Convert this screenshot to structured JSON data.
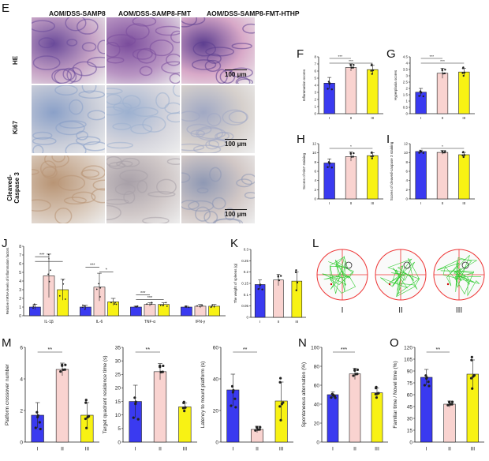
{
  "panel_letters": {
    "E": "E",
    "F": "F",
    "G": "G",
    "H": "H",
    "I": "I",
    "J": "J",
    "K": "K",
    "L": "L",
    "M": "M",
    "N": "N",
    "O": "O"
  },
  "histology": {
    "columns": [
      "AOM/DSS-SAMP8",
      "AOM/DSS-SAMP8-FMT",
      "AOM/DSS-SAMP8-FMT-HTHP"
    ],
    "rows": [
      "HE",
      "Ki67",
      "Cleaved-\nCaspase 3"
    ],
    "scale": "100 μm"
  },
  "colors": {
    "I": "#3a3af0",
    "II": "#f9d3d0",
    "III": "#f8f214"
  },
  "maze": {
    "labels": [
      "I",
      "II",
      "III"
    ]
  },
  "chart_data": [
    {
      "id": "F",
      "type": "bar",
      "categories": [
        "I",
        "II",
        "III"
      ],
      "values": [
        4.3,
        6.5,
        6.2
      ],
      "errors": [
        0.8,
        0.5,
        0.6
      ],
      "ylabel": "Inflammation scores",
      "ylim": [
        0,
        8
      ],
      "yticks": [
        0,
        1,
        2,
        3,
        4,
        5,
        6,
        7,
        8
      ],
      "sig": [
        {
          "from": 0,
          "to": 1,
          "label": "***"
        },
        {
          "from": 0,
          "to": 2,
          "label": "***"
        }
      ]
    },
    {
      "id": "G",
      "type": "bar",
      "categories": [
        "I",
        "II",
        "III"
      ],
      "values": [
        1.7,
        3.2,
        3.3
      ],
      "errors": [
        0.3,
        0.4,
        0.3
      ],
      "ylabel": "Hyperplasia scores",
      "ylim": [
        0,
        4.5
      ],
      "yticks": [
        0,
        0.5,
        1,
        1.5,
        2,
        2.5,
        3,
        3.5,
        4,
        4.5
      ],
      "sig": [
        {
          "from": 0,
          "to": 1,
          "label": "***"
        },
        {
          "from": 0,
          "to": 2,
          "label": "***"
        }
      ]
    },
    {
      "id": "H",
      "type": "bar",
      "categories": [
        "I",
        "II",
        "III"
      ],
      "values": [
        7.8,
        9.2,
        9.4
      ],
      "errors": [
        0.9,
        1.0,
        0.6
      ],
      "ylabel": "Scores of Ki67 staining",
      "ylim": [
        0,
        12
      ],
      "yticks": [
        0,
        2,
        4,
        6,
        8,
        10,
        12
      ],
      "sig": [
        {
          "from": 0,
          "to": 2,
          "label": "*"
        }
      ]
    },
    {
      "id": "I",
      "type": "bar",
      "categories": [
        "I",
        "II",
        "III"
      ],
      "values": [
        10.3,
        10.1,
        9.6
      ],
      "errors": [
        0.3,
        0.4,
        0.5
      ],
      "ylabel": "Scores of cleaved-caspase 3 staining",
      "ylim": [
        0,
        12
      ],
      "yticks": [
        0,
        2,
        4,
        6,
        8,
        10,
        12
      ],
      "sig": [
        {
          "from": 0,
          "to": 2,
          "label": "*"
        }
      ]
    },
    {
      "id": "J",
      "type": "bar",
      "categories": [
        "IL-1β",
        "IL-6",
        "TNF-α",
        "IFN-γ"
      ],
      "series": [
        {
          "name": "I",
          "values": [
            1.0,
            1.0,
            1.0,
            1.0
          ],
          "errors": [
            0.3,
            0.2,
            0.1,
            0.1
          ]
        },
        {
          "name": "II",
          "values": [
            4.6,
            3.3,
            1.3,
            1.1
          ],
          "errors": [
            2.5,
            1.6,
            0.2,
            0.2
          ]
        },
        {
          "name": "III",
          "values": [
            3.0,
            1.6,
            1.3,
            1.1
          ],
          "errors": [
            1.2,
            0.4,
            0.2,
            0.2
          ]
        }
      ],
      "ylabel": "Relative mRNA levels of inflammation factors",
      "ylim": [
        0,
        8
      ],
      "yticks": [
        0,
        1,
        2,
        3,
        4,
        5,
        6,
        7,
        8
      ],
      "sig": [
        {
          "group": 0,
          "from": 0,
          "to": 1,
          "label": "***"
        },
        {
          "group": 0,
          "from": 0,
          "to": 2,
          "label": "*"
        },
        {
          "group": 1,
          "from": 0,
          "to": 1,
          "label": "***"
        },
        {
          "group": 1,
          "from": 1,
          "to": 2,
          "label": "*"
        },
        {
          "group": 2,
          "from": 0,
          "to": 1,
          "label": "***"
        },
        {
          "group": 2,
          "from": 0,
          "to": 2,
          "label": "***"
        }
      ]
    },
    {
      "id": "K",
      "type": "bar",
      "categories": [
        "I",
        "II",
        "III"
      ],
      "values": [
        0.145,
        0.165,
        0.16
      ],
      "errors": [
        0.02,
        0.025,
        0.04
      ],
      "ylabel": "The weight of spleens (g)",
      "ylim": [
        0,
        0.3
      ],
      "yticks": [
        0,
        0.05,
        0.1,
        0.15,
        0.2,
        0.25,
        0.3
      ]
    },
    {
      "id": "M1",
      "type": "bar",
      "categories": [
        "I",
        "II",
        "III"
      ],
      "values": [
        1.7,
        4.6,
        1.7
      ],
      "errors": [
        0.8,
        0.4,
        0.8
      ],
      "ylabel": "Platform crossover number",
      "ylim": [
        0,
        6
      ],
      "yticks": [
        0,
        2,
        4,
        6
      ],
      "sig": [
        {
          "from": 0,
          "to": 1,
          "label": "**"
        }
      ]
    },
    {
      "id": "M2",
      "type": "bar",
      "categories": [
        "I",
        "II",
        "III"
      ],
      "values": [
        15,
        26,
        13
      ],
      "errors": [
        6,
        3,
        1.5
      ],
      "ylabel": "Target quadrant residence time (s)",
      "ylim": [
        0,
        35
      ],
      "yticks": [
        0,
        5,
        10,
        15,
        20,
        25,
        30,
        35
      ],
      "sig": [
        {
          "from": 0,
          "to": 1,
          "label": "**"
        }
      ]
    },
    {
      "id": "M3",
      "type": "bar",
      "categories": [
        "I",
        "II",
        "III"
      ],
      "values": [
        33,
        8,
        26
      ],
      "errors": [
        10,
        2,
        12
      ],
      "ylabel": "Latency to mount platform (s)",
      "ylim": [
        0,
        60
      ],
      "yticks": [
        0,
        20,
        40,
        60
      ],
      "sig": [
        {
          "from": 0,
          "to": 1,
          "label": "**"
        }
      ]
    },
    {
      "id": "N",
      "type": "bar",
      "categories": [
        "I",
        "II",
        "III"
      ],
      "values": [
        50,
        72,
        52
      ],
      "errors": [
        3,
        6,
        5
      ],
      "ylabel": "Spontaneous alternation (%)",
      "ylim": [
        0,
        100
      ],
      "yticks": [
        0,
        20,
        40,
        60,
        80,
        100
      ],
      "sig": [
        {
          "from": 0,
          "to": 1,
          "label": "***"
        }
      ]
    },
    {
      "id": "O",
      "type": "bar",
      "categories": [
        "I",
        "II",
        "III"
      ],
      "values": [
        82,
        48,
        86
      ],
      "errors": [
        10,
        4,
        18
      ],
      "ylabel": "Familiar time / Novel time (%)",
      "ylim": [
        0,
        120
      ],
      "yticks": [
        0,
        15,
        30,
        45,
        60,
        75,
        90,
        105,
        120
      ],
      "sig": [
        {
          "from": 0,
          "to": 1,
          "label": "**"
        }
      ]
    }
  ]
}
